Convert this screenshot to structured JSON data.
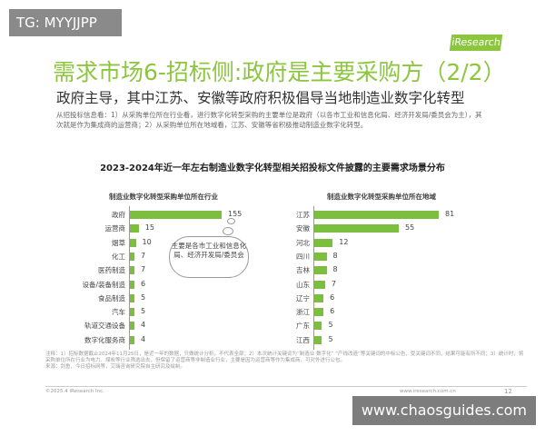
{
  "watermarks": {
    "top": "TG: MYYJJPP",
    "bottom": "www.chaosguides.com"
  },
  "logo": "iResearch",
  "title": "需求市场6-招标侧:政府是主要采购方（2/2）",
  "subtitle": "政府主导，其中江苏、安徽等政府积极倡导当地制造业数字化转型",
  "description": "从招投标信息看：1）从采购单位所在行业看，进行数字化转型采购的主要单位是政府（以各市工业和信息化局、经济开发局/委员会为主），其次就是作为集成商的运营商；2）从采购单位所在地域看，江苏、安徽等省积极推动制造业数字化转型。",
  "chart_data": [
    {
      "type": "bar",
      "orientation": "horizontal",
      "title": "2023-2024年近一年左右制造业数字化转型相关招投标文件披露的主要需求场景分布",
      "subtitle": "制造业数字化转型采购单位所在行业",
      "categories": [
        "政府",
        "运营商",
        "烟草",
        "化工",
        "医药制造",
        "设备/装备制造",
        "食品制造",
        "汽车",
        "轨道交通设备",
        "数字化服务商"
      ],
      "values": [
        155,
        15,
        10,
        7,
        7,
        6,
        5,
        5,
        4,
        4
      ],
      "color": "#7cbf3f",
      "annotation": "主要是各市工业和信息化局、经济开发局/委员会"
    },
    {
      "type": "bar",
      "orientation": "horizontal",
      "subtitle": "制造业数字化转型采购单位所在地域",
      "categories": [
        "江苏",
        "安徽",
        "河北",
        "四川",
        "吉林",
        "山东",
        "辽宁",
        "浙江",
        "广东",
        "江西"
      ],
      "values": [
        81,
        55,
        12,
        8,
        8,
        7,
        6,
        6,
        5,
        5
      ],
      "color": "#7cbf3f"
    }
  ],
  "footer": {
    "note": "注释：1）招标数据截止2024年11月25日，是近一年的数据，只做统计分析，不代表全部；2）本次统计关键词为“制造业 数字化” “产线改造”等关键词的中标公告，受关键词不同，结果可能有所不同；3）统计时，将采购单位所在行业为电力、煤炭等行业筛选出去，但保留了运营商等非制造业行业，主要是因为运营商等作为集成商，可对外进行公包。",
    "source": "来源：剑鱼、今日招标网等，艾瑞咨询研究院自主研究及绘制。",
    "copyright": "©2025.4 iResearch Inc.",
    "site": "www.iresearch.com.cn",
    "page": "12"
  }
}
